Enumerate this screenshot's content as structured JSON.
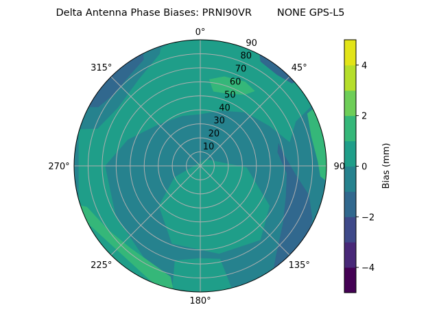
{
  "chart_data": {
    "type": "polar-contour",
    "title": "Delta Antenna Phase Biases: PRNI90VR        NONE GPS-L5",
    "angular_ticks": [
      "0°",
      "45°",
      "90°",
      "135°",
      "180°",
      "225°",
      "270°",
      "315°"
    ],
    "angular_tick_values": [
      0,
      45,
      90,
      135,
      180,
      225,
      270,
      315
    ],
    "radial_ticks": [
      "10",
      "20",
      "30",
      "40",
      "50",
      "60",
      "70",
      "80",
      "90"
    ],
    "radial_tick_values": [
      10,
      20,
      30,
      40,
      50,
      60,
      70,
      80,
      90
    ],
    "radial_range": [
      0,
      90
    ],
    "angular_direction": "clockwise",
    "zero_location": "north",
    "grid": true,
    "colorbar": {
      "label": "Bias (mm)",
      "levels": [
        -5,
        -4,
        -3,
        -2,
        -1,
        0,
        1,
        2,
        3,
        4,
        5
      ],
      "tick_labels": [
        "−4",
        "−2",
        "0",
        "2",
        "4"
      ],
      "tick_values": [
        -4,
        -2,
        0,
        2,
        4
      ],
      "colormap": "viridis",
      "colors": [
        "#440154",
        "#482878",
        "#3e4989",
        "#31688e",
        "#26828e",
        "#1f9e89",
        "#35b779",
        "#6ece58",
        "#b5de2b",
        "#e2e418"
      ]
    },
    "contour_regions": [
      {
        "level": [
          -1,
          0
        ],
        "points": "full"
      },
      {
        "level": [
          0,
          1
        ],
        "points": [
          [
            60,
            90
          ],
          [
            65,
            75
          ],
          [
            75,
            66
          ],
          [
            60,
            57
          ],
          [
            40,
            50
          ],
          [
            20,
            42
          ],
          [
            0,
            37
          ],
          [
            -20,
            38
          ],
          [
            -45,
            42
          ],
          [
            -70,
            55
          ],
          [
            -90,
            68
          ],
          [
            -120,
            70
          ],
          [
            -150,
            78
          ],
          [
            -160,
            90
          ],
          [
            -120,
            90
          ],
          [
            -60,
            90
          ],
          [
            0,
            90
          ],
          [
            30,
            90
          ]
        ]
      },
      {
        "level": [
          0,
          1
        ],
        "points": [
          [
            39,
            6
          ],
          [
            92,
            33
          ],
          [
            120,
            57
          ],
          [
            141,
            68
          ],
          [
            168,
            64
          ],
          [
            200,
            59
          ],
          [
            226,
            41
          ],
          [
            246,
            20
          ]
        ]
      },
      {
        "level": [
          0,
          1
        ],
        "points": [
          [
            165,
            90
          ],
          [
            168,
            68
          ],
          [
            180,
            66
          ],
          [
            195,
            70
          ],
          [
            192,
            90
          ]
        ]
      },
      {
        "level": [
          -1,
          0
        ],
        "points": [
          [
            285,
            90
          ],
          [
            290,
            78
          ],
          [
            305,
            72
          ],
          [
            325,
            76
          ],
          [
            340,
            85
          ],
          [
            345,
            90
          ]
        ]
      },
      {
        "level": [
          -2,
          -1
        ],
        "points": [
          [
            74,
            58
          ],
          [
            82,
            60
          ],
          [
            95,
            68
          ],
          [
            105,
            80
          ],
          [
            115,
            88
          ],
          [
            130,
            90
          ],
          [
            150,
            90
          ],
          [
            140,
            84
          ],
          [
            125,
            72
          ],
          [
            110,
            65
          ],
          [
            95,
            62
          ],
          [
            80,
            56
          ]
        ]
      },
      {
        "level": [
          -2,
          -1
        ],
        "points": [
          [
            295,
            90
          ],
          [
            300,
            84
          ],
          [
            310,
            80
          ],
          [
            322,
            82
          ],
          [
            332,
            86
          ],
          [
            335,
            90
          ]
        ]
      },
      {
        "level": [
          -2,
          -1
        ],
        "points": [
          [
            24,
            90
          ],
          [
            30,
            86
          ],
          [
            40,
            85
          ],
          [
            48,
            88
          ],
          [
            50,
            90
          ]
        ]
      },
      {
        "level": [
          1,
          2
        ],
        "points": [
          [
            6,
            62
          ],
          [
            15,
            66
          ],
          [
            28,
            68
          ],
          [
            36,
            66
          ],
          [
            32,
            60
          ],
          [
            20,
            55
          ],
          [
            10,
            54
          ]
        ]
      },
      {
        "level": [
          1,
          2
        ],
        "points": [
          [
            62,
            90
          ],
          [
            64,
            85
          ],
          [
            75,
            82
          ],
          [
            88,
            84
          ],
          [
            95,
            86
          ],
          [
            100,
            90
          ]
        ]
      },
      {
        "level": [
          1,
          2
        ],
        "points": [
          [
            255,
            90
          ],
          [
            250,
            86
          ],
          [
            235,
            80
          ],
          [
            220,
            77
          ],
          [
            205,
            78
          ],
          [
            195,
            82
          ],
          [
            190,
            90
          ]
        ]
      }
    ]
  }
}
